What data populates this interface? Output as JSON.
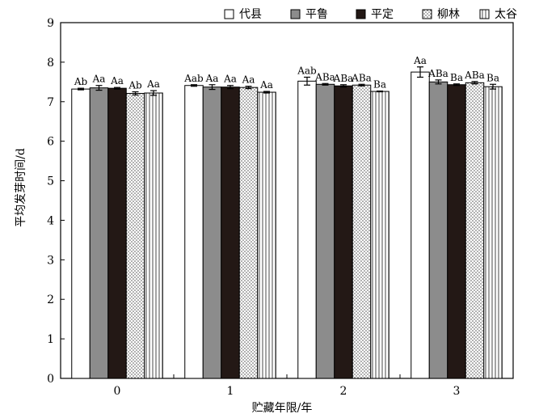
{
  "chart_data": {
    "type": "bar",
    "title": "",
    "xlabel": "贮藏年限/年",
    "ylabel": "平均发芽时间/d",
    "ylim": [
      0,
      9
    ],
    "yticks": [
      0,
      1,
      2,
      3,
      4,
      5,
      6,
      7,
      8,
      9
    ],
    "categories": [
      "0",
      "1",
      "2",
      "3"
    ],
    "legend_position": "top-right",
    "grid": false,
    "series": [
      {
        "name": "代县",
        "pattern": "white",
        "values": [
          7.32,
          7.41,
          7.52,
          7.75
        ],
        "errors": [
          0.02,
          0.02,
          0.1,
          0.13
        ],
        "labels": [
          "Ab",
          "Aab",
          "Aab",
          "Aa"
        ]
      },
      {
        "name": "平鲁",
        "pattern": "gray",
        "values": [
          7.35,
          7.37,
          7.44,
          7.5
        ],
        "errors": [
          0.06,
          0.06,
          0.02,
          0.05
        ],
        "labels": [
          "Aa",
          "Aa",
          "ABa",
          "ABa"
        ]
      },
      {
        "name": "平定",
        "pattern": "black",
        "values": [
          7.34,
          7.37,
          7.4,
          7.43
        ],
        "errors": [
          0.02,
          0.04,
          0.03,
          0.02
        ],
        "labels": [
          "Aa",
          "Aa",
          "ABa",
          "Ba"
        ]
      },
      {
        "name": "柳林",
        "pattern": "dots",
        "values": [
          7.21,
          7.36,
          7.42,
          7.48
        ],
        "errors": [
          0.04,
          0.03,
          0.02,
          0.03
        ],
        "labels": [
          "Ab",
          "Aa",
          "ABa",
          "ABa"
        ]
      },
      {
        "name": "太谷",
        "pattern": "vlines",
        "values": [
          7.22,
          7.24,
          7.26,
          7.38
        ],
        "errors": [
          0.06,
          0.02,
          0.01,
          0.06
        ],
        "labels": [
          "Aa",
          "Aa",
          "Ba",
          "Ba"
        ]
      }
    ]
  }
}
